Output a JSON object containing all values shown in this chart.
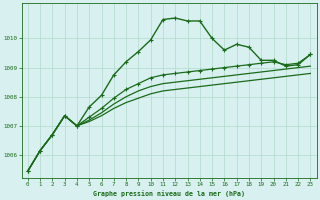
{
  "title": "Graphe pression niveau de la mer (hPa)",
  "bg_color": "#d8f0f0",
  "grid_color": "#b0d8cc",
  "line_color": "#1a6b1a",
  "xlim": [
    -0.5,
    23.5
  ],
  "ylim": [
    1005.2,
    1011.2
  ],
  "yticks": [
    1006,
    1007,
    1008,
    1009,
    1010
  ],
  "xticks": [
    0,
    1,
    2,
    3,
    4,
    5,
    6,
    7,
    8,
    9,
    10,
    11,
    12,
    13,
    14,
    15,
    16,
    17,
    18,
    19,
    20,
    21,
    22,
    23
  ],
  "series": [
    {
      "y": [
        1005.45,
        1006.15,
        1006.7,
        1007.35,
        1007.0,
        1007.65,
        1008.05,
        1008.75,
        1009.2,
        1009.55,
        1009.95,
        1010.65,
        1010.7,
        1010.6,
        1010.6,
        1010.0,
        1009.6,
        1009.8,
        1009.7,
        1009.25,
        1009.25,
        1009.05,
        1009.1,
        1009.45
      ],
      "marker": true,
      "lw": 1.0
    },
    {
      "y": [
        1005.45,
        1006.15,
        1006.7,
        1007.35,
        1007.0,
        1007.15,
        1007.35,
        1007.6,
        1007.8,
        1007.95,
        1008.1,
        1008.2,
        1008.25,
        1008.3,
        1008.35,
        1008.4,
        1008.45,
        1008.5,
        1008.55,
        1008.6,
        1008.65,
        1008.7,
        1008.75,
        1008.8
      ],
      "marker": false,
      "lw": 0.9
    },
    {
      "y": [
        1005.45,
        1006.15,
        1006.7,
        1007.35,
        1007.0,
        1007.2,
        1007.45,
        1007.75,
        1008.0,
        1008.2,
        1008.35,
        1008.45,
        1008.5,
        1008.55,
        1008.6,
        1008.65,
        1008.7,
        1008.75,
        1008.8,
        1008.85,
        1008.9,
        1008.95,
        1009.0,
        1009.05
      ],
      "marker": false,
      "lw": 0.9
    },
    {
      "y": [
        1005.45,
        1006.15,
        1006.7,
        1007.35,
        1007.0,
        1007.3,
        1007.6,
        1007.95,
        1008.25,
        1008.45,
        1008.65,
        1008.75,
        1008.8,
        1008.85,
        1008.9,
        1008.95,
        1009.0,
        1009.05,
        1009.1,
        1009.15,
        1009.2,
        1009.1,
        1009.15,
        1009.45
      ],
      "marker": true,
      "lw": 0.9
    }
  ]
}
